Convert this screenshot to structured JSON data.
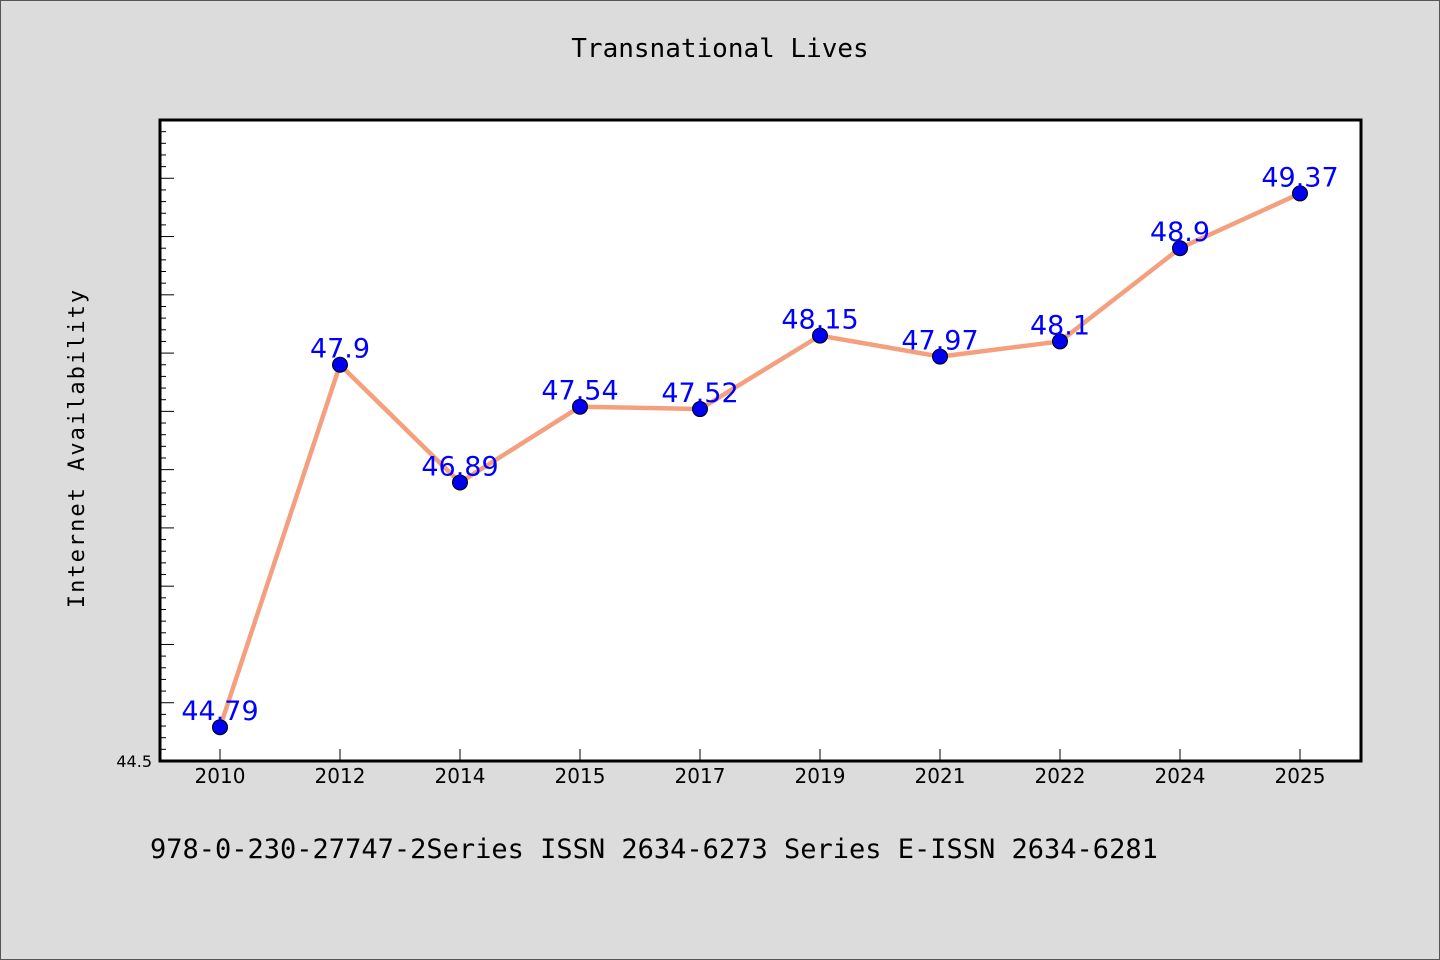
{
  "chart_data": {
    "type": "line",
    "title": "Transnational Lives",
    "xlabel": "",
    "ylabel": "Internet Availability",
    "categories": [
      "2010",
      "2012",
      "2014",
      "2015",
      "2017",
      "2019",
      "2021",
      "2022",
      "2024",
      "2025"
    ],
    "series": [
      {
        "values": [
          44.79,
          47.9,
          46.89,
          47.54,
          47.52,
          48.15,
          47.97,
          48.1,
          48.9,
          49.37
        ]
      }
    ],
    "data_labels": [
      "44.79",
      "47.9",
      "46.89",
      "47.54",
      "47.52",
      "48.15",
      "47.97",
      "48.1",
      "48.9",
      "49.37"
    ],
    "ylim": [
      44.5,
      50.0
    ],
    "y_tick_labels": [
      "44.5"
    ],
    "grid": false,
    "legend": "none",
    "colors": {
      "line": "#f4a07e",
      "marker": "#0000ee",
      "data_label": "#0000ff",
      "plot_background": "#ffffff",
      "page_background": "#dcdcdc"
    }
  },
  "footer": {
    "text": "978-0-230-27747-2Series ISSN 2634-6273 Series E-ISSN 2634-6281"
  }
}
